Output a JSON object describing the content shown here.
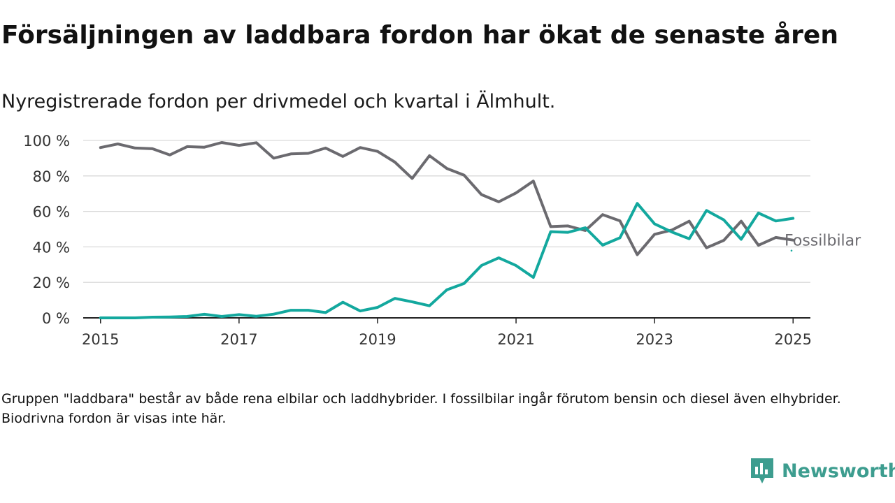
{
  "title": "Försäljningen av laddbara fordon har ökat de senaste åren",
  "subtitle": "Nyregistrerade fordon per drivmedel och kvartal i Älmhult.",
  "footnote": "Gruppen \"laddbara\" består av både rena elbilar och laddhybrider. I fossilbilar ingår förutom bensin och diesel även elhybrider. Biodrivna fordon är visas inte här.",
  "brand": {
    "name": "Newsworthy",
    "icon": "newsworthy-logo-icon",
    "color": "#3d9d8f"
  },
  "chart_data": {
    "type": "line",
    "x_start": 2015.0,
    "x_step": 0.25,
    "xlim": [
      2014.75,
      2025.25
    ],
    "ylim": [
      0,
      100
    ],
    "x_ticks": [
      2015,
      2017,
      2019,
      2021,
      2023,
      2025
    ],
    "x_tick_labels": [
      "2015",
      "2017",
      "2019",
      "2021",
      "2023",
      "2025"
    ],
    "y_ticks": [
      0,
      20,
      40,
      60,
      80,
      100
    ],
    "y_tick_labels": [
      "0 %",
      "20 %",
      "40 %",
      "60 %",
      "80 %",
      "100 %"
    ],
    "grid": true,
    "series": [
      {
        "name": "Fossilbilar",
        "color": "#6b6a6f",
        "values": [
          96,
          98,
          95.7,
          95.3,
          91.8,
          96.5,
          96.2,
          98.8,
          97.2,
          98.7,
          90,
          92.4,
          92.7,
          95.7,
          91,
          96,
          93.8,
          87.8,
          78.6,
          91.4,
          84.2,
          80.4,
          69.5,
          65.4,
          70.4,
          77.1,
          51.4,
          51.8,
          49.2,
          58.2,
          54.7,
          35.6,
          47.1,
          49.5,
          54.5,
          39.5,
          43.7,
          54.5,
          40.9,
          45.3,
          43.8
        ]
      },
      {
        "name": "",
        "color": "#13a89e",
        "values": [
          0,
          0,
          0,
          0.4,
          0.5,
          0.8,
          2,
          0.8,
          1.8,
          0.9,
          2.1,
          4.3,
          4.3,
          3,
          8.8,
          3.9,
          5.9,
          11,
          9,
          6.8,
          15.8,
          19.4,
          29.5,
          33.8,
          29.5,
          22.8,
          48.6,
          48.2,
          50.8,
          41,
          45.1,
          64.5,
          53,
          48.4,
          44.6,
          60.5,
          55.2,
          44.3,
          59.1,
          54.6,
          56.1
        ]
      }
    ],
    "end_label": "Fossilbilar"
  }
}
